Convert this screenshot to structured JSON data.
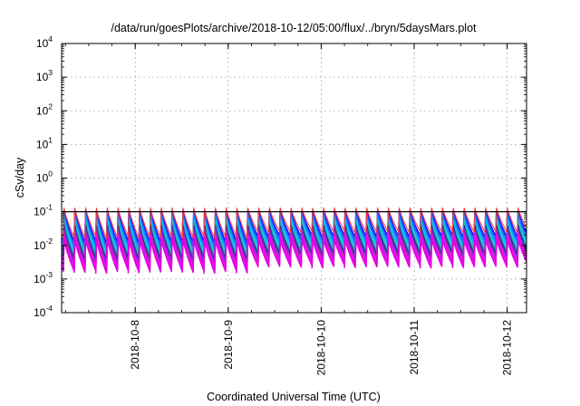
{
  "chart_data": {
    "type": "line",
    "title": "/data/run/goesPlots/archive/2018-10-12/05:00/flux/../bryn/5daysMars.plot",
    "xlabel": "Coordinated Universal Time (UTC)",
    "ylabel": "cSv/day",
    "y_scale": "log",
    "ylim": [
      0.0001,
      10000
    ],
    "y_ticks": [
      {
        "value": 0.0001,
        "base": "10",
        "exp": "-4"
      },
      {
        "value": 0.001,
        "base": "10",
        "exp": "-3"
      },
      {
        "value": 0.01,
        "base": "10",
        "exp": "-2"
      },
      {
        "value": 0.1,
        "base": "10",
        "exp": "-1"
      },
      {
        "value": 1,
        "base": "10",
        "exp": "0"
      },
      {
        "value": 10,
        "base": "10",
        "exp": "1"
      },
      {
        "value": 100,
        "base": "10",
        "exp": "2"
      },
      {
        "value": 1000,
        "base": "10",
        "exp": "3"
      },
      {
        "value": 10000,
        "base": "10",
        "exp": "4"
      }
    ],
    "xlim": [
      "2018-10-07 05:00",
      "2018-10-12 05:00"
    ],
    "x_ticks": [
      {
        "label": "2018-10-8",
        "date": "2018-10-08 00:00"
      },
      {
        "label": "2018-10-9",
        "date": "2018-10-09 00:00"
      },
      {
        "label": "2018-10-10",
        "date": "2018-10-10 00:00"
      },
      {
        "label": "2018-10-11",
        "date": "2018-10-11 00:00"
      },
      {
        "label": "2018-10-12",
        "date": "2018-10-12 00:00"
      }
    ],
    "grid": true,
    "reference_line": {
      "value": 0.1,
      "color": "#000000"
    },
    "cycles_per_day": 8.6,
    "series": [
      {
        "color": "#1010ff",
        "peak": 0.11,
        "trough": 0.018
      },
      {
        "color": "#3050ff",
        "peak": 0.095,
        "trough": 0.014
      },
      {
        "color": "#00a0ff",
        "peak": 0.075,
        "trough": 0.011
      },
      {
        "color": "#18c8e8",
        "peak": 0.055,
        "trough": 0.009
      },
      {
        "color": "#20b0a0",
        "peak": 0.045,
        "trough": 0.007
      },
      {
        "color": "#2a2aa0",
        "peak": 0.038,
        "trough": 0.0055
      },
      {
        "color": "#8030c0",
        "peak": 0.03,
        "trough": 0.0045
      },
      {
        "color": "#c020c0",
        "peak": 0.024,
        "trough": 0.0035
      },
      {
        "color": "#ff00ff",
        "peak": 0.02,
        "trough": 0.003
      },
      {
        "color": "#e000e0",
        "peak": 0.016,
        "trough": 0.0024
      },
      {
        "color": "#ff3030",
        "peak": 0.13,
        "trough": 0.025
      }
    ]
  }
}
